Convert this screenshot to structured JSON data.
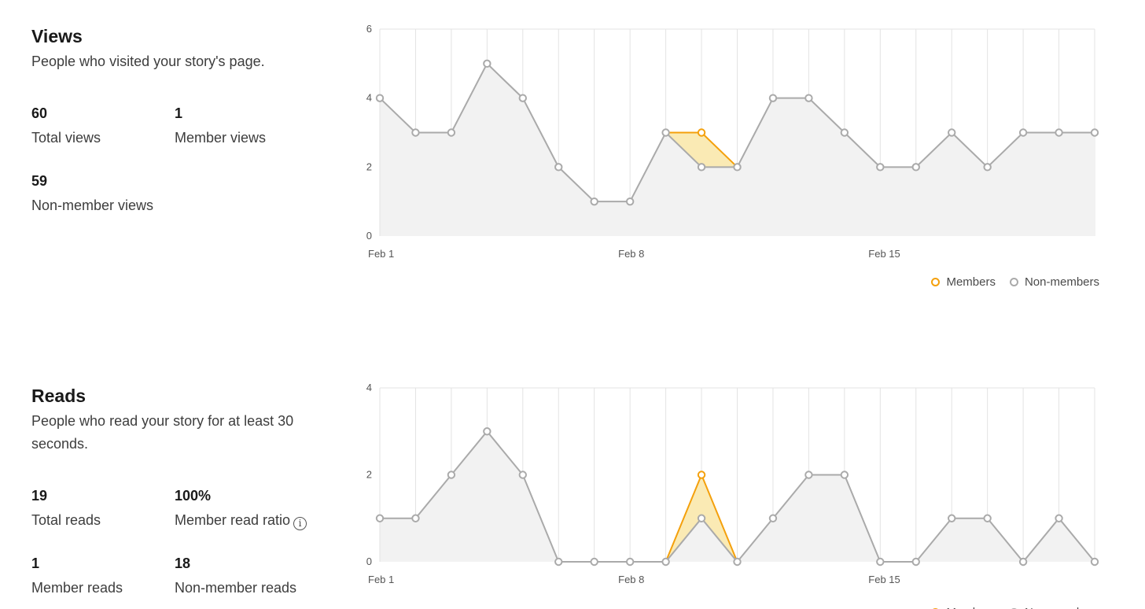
{
  "views": {
    "title": "Views",
    "description": "People who visited your story's page.",
    "stats": [
      {
        "value": "60",
        "label": "Total views"
      },
      {
        "value": "1",
        "label": "Member views"
      },
      {
        "value": "59",
        "label": "Non-member views"
      }
    ]
  },
  "reads": {
    "title": "Reads",
    "description": "People who read your story for at least 30 seconds.",
    "stats": [
      {
        "value": "19",
        "label": "Total reads"
      },
      {
        "value": "100%",
        "label": "Member read ratio"
      },
      {
        "value": "1",
        "label": "Member reads"
      },
      {
        "value": "18",
        "label": "Non-member reads"
      }
    ]
  },
  "legend": {
    "members": "Members",
    "non_members": "Non-members"
  },
  "colors": {
    "members": "#f4a00c",
    "members_fill": "#faeab4",
    "non_members": "#aaaaaa",
    "non_members_fill": "#f2f2f2",
    "grid": "#e3e3e3"
  },
  "chart_data": [
    {
      "type": "area",
      "x": [
        "Feb 1",
        "Feb 2",
        "Feb 3",
        "Feb 4",
        "Feb 5",
        "Feb 6",
        "Feb 7",
        "Feb 8",
        "Feb 9",
        "Feb 10",
        "Feb 11",
        "Feb 12",
        "Feb 13",
        "Feb 14",
        "Feb 15",
        "Feb 16",
        "Feb 17",
        "Feb 18",
        "Feb 19",
        "Feb 20",
        "Feb 21"
      ],
      "xticks": [
        "Feb 1",
        "Feb 8",
        "Feb 15"
      ],
      "yticks": [
        0,
        2,
        4,
        6
      ],
      "ylim": [
        0,
        6
      ],
      "stacked": true,
      "series": [
        {
          "name": "Non-members",
          "values": [
            4,
            3,
            3,
            5,
            4,
            2,
            1,
            1,
            3,
            2,
            2,
            4,
            4,
            3,
            2,
            2,
            3,
            2,
            3,
            3,
            3
          ]
        },
        {
          "name": "Members",
          "values": [
            0,
            0,
            0,
            0,
            0,
            0,
            0,
            0,
            0,
            1,
            0,
            0,
            0,
            0,
            0,
            0,
            0,
            0,
            0,
            0,
            0
          ]
        }
      ]
    },
    {
      "type": "area",
      "x": [
        "Feb 1",
        "Feb 2",
        "Feb 3",
        "Feb 4",
        "Feb 5",
        "Feb 6",
        "Feb 7",
        "Feb 8",
        "Feb 9",
        "Feb 10",
        "Feb 11",
        "Feb 12",
        "Feb 13",
        "Feb 14",
        "Feb 15",
        "Feb 16",
        "Feb 17",
        "Feb 18",
        "Feb 19",
        "Feb 20",
        "Feb 21"
      ],
      "xticks": [
        "Feb 1",
        "Feb 8",
        "Feb 15"
      ],
      "yticks": [
        0,
        2,
        4
      ],
      "ylim": [
        0,
        4
      ],
      "stacked": true,
      "series": [
        {
          "name": "Non-members",
          "values": [
            1,
            1,
            2,
            3,
            2,
            0,
            0,
            0,
            0,
            1,
            0,
            1,
            2,
            2,
            0,
            0,
            1,
            1,
            0,
            1,
            0
          ]
        },
        {
          "name": "Members",
          "values": [
            0,
            0,
            0,
            0,
            0,
            0,
            0,
            0,
            0,
            1,
            0,
            0,
            0,
            0,
            0,
            0,
            0,
            0,
            0,
            0,
            0
          ]
        }
      ]
    }
  ]
}
